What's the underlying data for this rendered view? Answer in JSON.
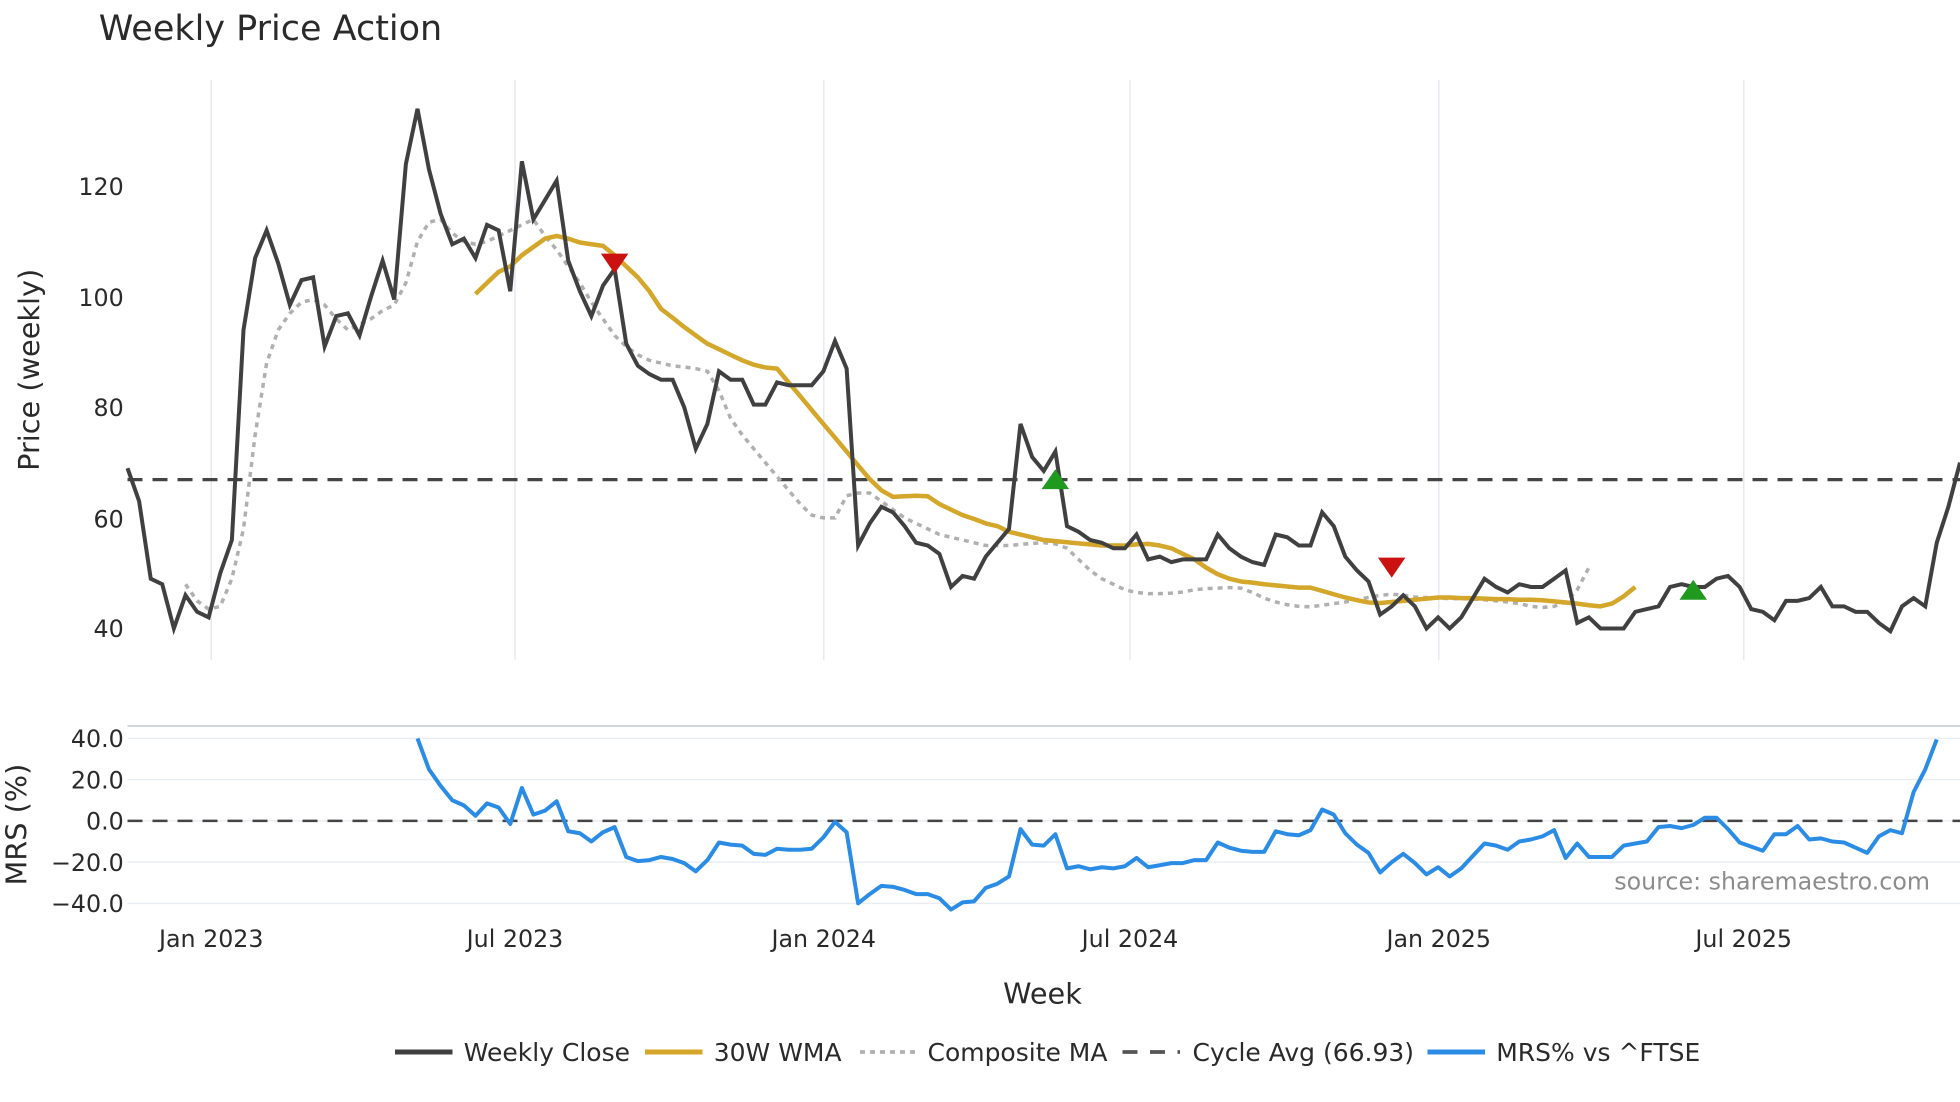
{
  "chart_data": [
    {
      "type": "line",
      "panel": "price",
      "title": "Weekly Price Action",
      "xlabel": "Week",
      "ylabel": "Price (weekly)",
      "ylim": [
        36,
        138
      ],
      "y_ticks": [
        "40",
        "60",
        "80",
        "100",
        "120"
      ],
      "x_ticks": [
        "Jan 2023",
        "Jul 2023",
        "Jan 2024",
        "Jul 2024",
        "Jan 2025",
        "Jul 2025"
      ],
      "grid": {
        "vertical": true,
        "horizontal": false
      },
      "reference_line": {
        "label": "Cycle Avg (66.93)",
        "value": 66.93,
        "style": "dashed",
        "color": "#444444"
      },
      "series": [
        {
          "name": "Weekly Close",
          "color": "#404040",
          "values": [
            69,
            63,
            49,
            48,
            40,
            46,
            43,
            42,
            50,
            56,
            94,
            107,
            112,
            106,
            98.5,
            103,
            103.5,
            91,
            96.5,
            97,
            93,
            100,
            106.5,
            99.5,
            124,
            134,
            123,
            115,
            109.5,
            110.5,
            107,
            113,
            112,
            101,
            124.5,
            114,
            117.5,
            121,
            106.5,
            101,
            96.5,
            102,
            105,
            91.5,
            87.5,
            86,
            85,
            85,
            80,
            72.5,
            77,
            86.5,
            85,
            85,
            80.5,
            80.5,
            84.5,
            84,
            84,
            84,
            86.5,
            92,
            87,
            55,
            59,
            62,
            61,
            58.5,
            55.5,
            55,
            53.5,
            47.5,
            49.5,
            49,
            53,
            55.5,
            58,
            77,
            71,
            68.5,
            72,
            58.5,
            57.5,
            56,
            55.5,
            54.5,
            54.5,
            57,
            52.5,
            53,
            52,
            52.5,
            52.5,
            52.5,
            57,
            54.5,
            53,
            52,
            51.5,
            57,
            56.5,
            55,
            55,
            61,
            58.5,
            53,
            50.5,
            48.5,
            42.5,
            44,
            46,
            44,
            40,
            42,
            40,
            42,
            45.5,
            49,
            47.5,
            46.5,
            48,
            47.5,
            47.5,
            49,
            50.5,
            41,
            42,
            40,
            40,
            40,
            43,
            43.5,
            44,
            47.5,
            48,
            47.5,
            47.5,
            49,
            49.5,
            47.5,
            43.5,
            43,
            41.5,
            45,
            45,
            45.5,
            47.5,
            44,
            44,
            43,
            43,
            41,
            39.5,
            44,
            45.5,
            44,
            55.5,
            62,
            70
          ]
        },
        {
          "name": "30W WMA",
          "color": "#d4a62a",
          "start_index": 30,
          "values": [
            100.5,
            102.5,
            104.5,
            105.5,
            107.5,
            109,
            110.5,
            111,
            110.5,
            109.8,
            109.5,
            109.2,
            107.5,
            105.5,
            103.5,
            101,
            97.8,
            96.2,
            94.5,
            93,
            91.5,
            90.5,
            89.5,
            88.5,
            87.7,
            87.2,
            87,
            84.5,
            82,
            79.5,
            77,
            74.5,
            72,
            69.5,
            67,
            65,
            63.8,
            63.9,
            64,
            63.9,
            62.5,
            61.5,
            60.5,
            59.8,
            59,
            58.5,
            57.5,
            57,
            56.5,
            56,
            55.8,
            55.6,
            55.4,
            55.2,
            55,
            55,
            55,
            55.2,
            55.3,
            55,
            54.5,
            53.5,
            52.5,
            51,
            49.8,
            49,
            48.5,
            48.3,
            48,
            47.8,
            47.6,
            47.4,
            47.4,
            46.8,
            46.2,
            45.6,
            45.1,
            44.7,
            44.6,
            44.8,
            45,
            45.2,
            45.4,
            45.6,
            45.6,
            45.5,
            45.5,
            45.4,
            45.3,
            45.3,
            45.2,
            45.2,
            45.1,
            44.9,
            44.7,
            44.5,
            44.2,
            44,
            44.5,
            45.8,
            47.5
          ]
        },
        {
          "name": "Composite MA",
          "color": "#b0b0b0",
          "style": "dotted",
          "start_index": 5,
          "values": [
            48,
            45,
            43.5,
            44,
            49,
            58,
            75,
            88,
            94,
            97,
            99,
            99.5,
            98.5,
            96,
            94,
            95,
            96,
            97.5,
            98.5,
            102.5,
            110,
            113.5,
            114,
            111.5,
            110,
            109.5,
            110,
            111,
            112,
            113,
            114,
            111,
            108.5,
            105.5,
            102.5,
            99,
            96,
            93,
            91,
            89.5,
            88.5,
            88,
            87.5,
            87.3,
            87,
            86.5,
            83,
            78,
            75,
            72.5,
            70,
            67.5,
            65,
            62.5,
            60.5,
            60,
            60,
            64,
            64.5,
            64.5,
            63,
            61.5,
            60,
            59,
            58,
            57,
            56.5,
            56,
            55.5,
            55,
            55,
            55,
            55.2,
            55.4,
            55.5,
            55.3,
            54.5,
            52.5,
            50.5,
            49,
            48,
            47,
            46.5,
            46.3,
            46.3,
            46.4,
            46.6,
            47,
            47.2,
            47.3,
            47.4,
            47.3,
            46.5,
            45.5,
            44.8,
            44.3,
            44,
            43.9,
            44.2,
            44.5,
            44.8,
            45.2,
            45.6,
            46,
            46.2,
            46,
            45.7,
            45.6,
            45.5,
            45.4,
            45.4,
            45.3,
            45.2,
            45,
            44.8,
            44.5,
            44,
            43.8,
            44,
            44.8,
            47,
            51
          ]
        }
      ],
      "markers": [
        {
          "type": "sell",
          "shape": "down-triangle",
          "color": "#cc1111",
          "x_index": 42,
          "value": 106
        },
        {
          "type": "buy",
          "shape": "up-triangle",
          "color": "#1f9a1f",
          "x_index": 80,
          "value": 67
        },
        {
          "type": "sell",
          "shape": "down-triangle",
          "color": "#cc1111",
          "x_index": 109,
          "value": 51
        },
        {
          "type": "buy",
          "shape": "up-triangle",
          "color": "#1f9a1f",
          "x_index": 135,
          "value": 47
        }
      ]
    },
    {
      "type": "line",
      "panel": "mrs",
      "xlabel": "Week",
      "ylabel": "MRS (%)",
      "ylim": [
        -48,
        46
      ],
      "y_ticks": [
        "40.0",
        "20.0",
        "0.0",
        "−20.0",
        "−40.0"
      ],
      "x_ticks": [
        "Jan 2023",
        "Jul 2023",
        "Jan 2024",
        "Jul 2024",
        "Jan 2025",
        "Jul 2025"
      ],
      "reference_line": {
        "value": 0,
        "style": "dashed",
        "color": "#444444"
      },
      "series": [
        {
          "name": "MRS% vs ^FTSE",
          "color": "#2b8ce6",
          "start_index": 25,
          "values": [
            40,
            25,
            17,
            10,
            7.5,
            2.5,
            8.5,
            6.5,
            -1.5,
            16,
            3,
            5,
            9.5,
            -5,
            -6,
            -10,
            -5.5,
            -3,
            -17.5,
            -19.5,
            -19,
            -17.5,
            -18.5,
            -20.5,
            -24.5,
            -19,
            -10.5,
            -11.5,
            -12,
            -16,
            -16.5,
            -13.5,
            -14,
            -14,
            -13.5,
            -8,
            -0.5,
            -5.5,
            -40,
            -35.5,
            -31.5,
            -32,
            -33.5,
            -35.5,
            -35.5,
            -37.5,
            -43,
            -39.5,
            -39,
            -32.5,
            -30.5,
            -27,
            -4,
            -11.5,
            -12,
            -6.5,
            -23,
            -22,
            -23.5,
            -22.5,
            -23,
            -22,
            -18,
            -22.5,
            -21.5,
            -20.5,
            -20.5,
            -19,
            -19,
            -10.5,
            -13,
            -14.5,
            -15,
            -15,
            -5,
            -6.5,
            -7,
            -4.5,
            5.5,
            3,
            -6,
            -11.5,
            -15.5,
            -25,
            -20,
            -16,
            -20.5,
            -26,
            -22.5,
            -27,
            -23,
            -17,
            -11,
            -12,
            -14,
            -10,
            -9,
            -7.5,
            -4.5,
            -18,
            -11,
            -17.5,
            -17.5,
            -17.5,
            -12,
            -11,
            -10,
            -3,
            -2.5,
            -3.5,
            -2,
            1.5,
            1.5,
            -4,
            -10.5,
            -12.5,
            -14.5,
            -6.5,
            -6.5,
            -2.5,
            -9,
            -8.5,
            -10,
            -10.5,
            -13,
            -15.5,
            -7.5,
            -4.5,
            -6,
            14,
            25,
            39.5
          ]
        }
      ],
      "annotation": "source: sharemaestro.com"
    }
  ],
  "header": {
    "title": "Weekly Price Action"
  },
  "axes": {
    "price_ylabel": "Price (weekly)",
    "mrs_ylabel": "MRS (%)",
    "xlabel": "Week",
    "price_ticks": [
      "120",
      "100",
      "80",
      "60",
      "40"
    ],
    "mrs_ticks": [
      "40.0",
      "20.0",
      "0.0",
      "−20.0",
      "−40.0"
    ],
    "x_ticks": [
      "Jan 2023",
      "Jul 2023",
      "Jan 2024",
      "Jul 2024",
      "Jan 2025",
      "Jul 2025"
    ]
  },
  "legend": {
    "items": [
      {
        "label": "Weekly Close",
        "color": "#404040"
      },
      {
        "label": "30W WMA",
        "color": "#d4a62a"
      },
      {
        "label": "Composite MA",
        "color": "#b0b0b0"
      },
      {
        "label": "Cycle Avg (66.93)",
        "color": "#444444"
      },
      {
        "label": "MRS% vs ^FTSE",
        "color": "#2b8ce6"
      }
    ]
  },
  "source": "source: sharemaestro.com"
}
